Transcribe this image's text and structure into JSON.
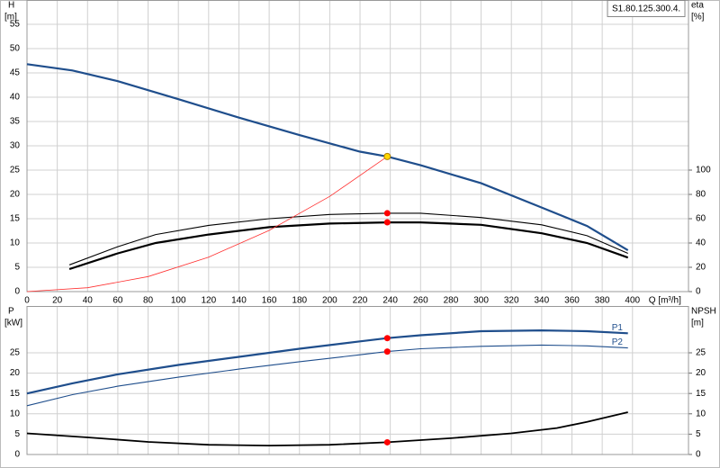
{
  "chart_data": [
    {
      "type": "line",
      "title": "S1.80.125.300.4.",
      "y_label": [
        "H",
        "[m]"
      ],
      "y2_label": [
        "eta",
        "[%]"
      ],
      "x_label": "Q [m³/h]",
      "xlim": [
        0,
        437
      ],
      "xticks": [
        0,
        20,
        40,
        60,
        80,
        100,
        120,
        140,
        160,
        180,
        200,
        220,
        240,
        260,
        280,
        300,
        320,
        340,
        360,
        380,
        400
      ],
      "ylim": [
        0,
        60
      ],
      "yticks": [
        0,
        5,
        10,
        15,
        20,
        25,
        30,
        35,
        40,
        45,
        50,
        55
      ],
      "y2lim": [
        0,
        240
      ],
      "y2ticks": [
        0,
        20,
        40,
        60,
        80,
        100
      ],
      "grid": true,
      "show_xtick_labels": true,
      "series": [
        {
          "color": "#1f4e8c",
          "line_width": 2.2,
          "axis": "y",
          "x": [
            0,
            30,
            60,
            100,
            140,
            180,
            220,
            238,
            260,
            300,
            340,
            370,
            397
          ],
          "values": [
            46.8,
            45.5,
            43.3,
            39.6,
            35.8,
            32.2,
            28.8,
            27.8,
            26,
            22.3,
            17.3,
            13.5,
            8.5
          ]
        },
        {
          "color": "#000000",
          "line_width": 2.2,
          "axis": "y2",
          "x": [
            28,
            60,
            85,
            120,
            160,
            200,
            238,
            260,
            300,
            340,
            370,
            397
          ],
          "values": [
            18.5,
            31.5,
            40,
            47,
            53,
            56,
            57,
            57,
            55,
            48,
            40,
            28
          ]
        },
        {
          "color": "#000000",
          "line_width": 1.1,
          "axis": "y2",
          "x": [
            28,
            60,
            85,
            120,
            160,
            200,
            238,
            260,
            300,
            340,
            370,
            397
          ],
          "values": [
            22,
            37,
            47,
            54.5,
            60,
            63.5,
            64.5,
            64.5,
            61,
            55,
            46,
            31.5
          ]
        },
        {
          "color": "#ff3030",
          "line_width": 0.8,
          "axis": "y",
          "x": [
            0,
            40,
            80,
            120,
            160,
            200,
            238
          ],
          "values": [
            0,
            0.8,
            3.1,
            7.1,
            12.6,
            19.6,
            27.8
          ]
        }
      ],
      "points": [
        {
          "x": 238,
          "y": 27.8,
          "color": "#ffd700",
          "axis": "y"
        },
        {
          "x": 238,
          "y": 64.5,
          "color": "#ff0000",
          "axis": "y2"
        },
        {
          "x": 238,
          "y": 57,
          "color": "#ff0000",
          "axis": "y2"
        }
      ]
    },
    {
      "type": "line",
      "y_label": [
        "P",
        "[kW]"
      ],
      "y2_label": [
        "NPSH",
        "[m]"
      ],
      "xlim": [
        0,
        437
      ],
      "xticks": [
        0,
        20,
        40,
        60,
        80,
        100,
        120,
        140,
        160,
        180,
        200,
        220,
        240,
        260,
        280,
        300,
        320,
        340,
        360,
        380,
        400
      ],
      "ylim": [
        0,
        36.5
      ],
      "yticks": [
        0,
        5,
        10,
        15,
        20,
        25
      ],
      "y2lim": [
        0,
        36.5
      ],
      "y2ticks": [
        0,
        5,
        10,
        15,
        20,
        25
      ],
      "grid": true,
      "show_xtick_labels": false,
      "series": [
        {
          "name": "P1",
          "color": "#1f4e8c",
          "line_width": 2.2,
          "axis": "y",
          "x": [
            0,
            30,
            60,
            100,
            140,
            180,
            220,
            238,
            260,
            300,
            340,
            370,
            397
          ],
          "values": [
            15,
            17.5,
            19.7,
            22,
            24,
            26,
            27.8,
            28.6,
            29.3,
            30.3,
            30.5,
            30.3,
            29.8
          ]
        },
        {
          "name": "P2",
          "color": "#1f4e8c",
          "line_width": 1.1,
          "axis": "y",
          "x": [
            0,
            30,
            60,
            100,
            140,
            180,
            220,
            238,
            260,
            300,
            340,
            370,
            397
          ],
          "values": [
            12,
            14.7,
            16.8,
            19,
            21,
            22.8,
            24.5,
            25.3,
            26,
            26.6,
            26.9,
            26.7,
            26.2
          ]
        },
        {
          "color": "#000000",
          "line_width": 1.8,
          "axis": "y2",
          "x": [
            0,
            40,
            80,
            120,
            160,
            200,
            238,
            280,
            320,
            350,
            370,
            397
          ],
          "values": [
            5.2,
            4.2,
            3.1,
            2.4,
            2.2,
            2.4,
            3,
            4,
            5.2,
            6.5,
            8,
            10.4
          ]
        }
      ],
      "points": [
        {
          "x": 238,
          "y": 28.6,
          "color": "#ff0000",
          "axis": "y"
        },
        {
          "x": 238,
          "y": 25.3,
          "color": "#ff0000",
          "axis": "y"
        },
        {
          "x": 238,
          "y": 3,
          "color": "#ff0000",
          "axis": "y2"
        }
      ]
    }
  ]
}
